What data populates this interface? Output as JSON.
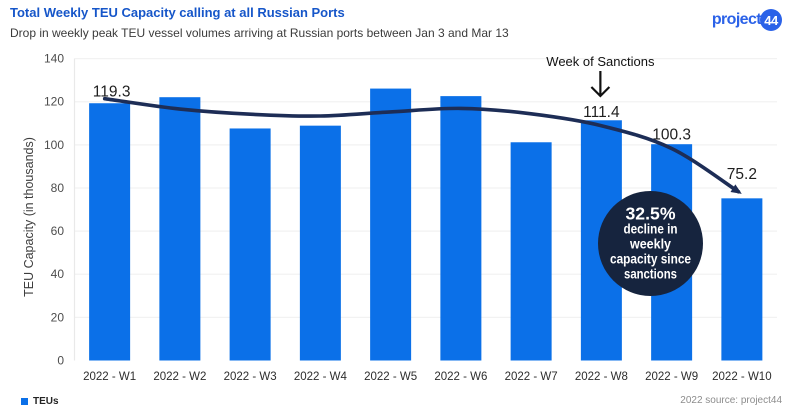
{
  "header": {
    "title": "Total Weekly TEU Capacity calling at all Russian Ports",
    "subtitle": "Drop in weekly peak TEU vessel volumes arriving at Russian ports between Jan 3 and Mar 13"
  },
  "logo": {
    "text": "project",
    "badge": "44"
  },
  "legend": {
    "label": "TEUs"
  },
  "footer": {
    "source": "2022 source: project44"
  },
  "colors": {
    "bar": "#0b70e8",
    "trend_line": "#1d2d56",
    "callout_fill": "#16243e",
    "grid": "#f2f2f2",
    "axis_line": "#e9e9e9",
    "title_blue": "#1656c9",
    "logo_blue": "#2b62e8",
    "value_label": "#1f1f1f",
    "axis_label": "#4d4d4d",
    "x_label": "#2d2d2d",
    "annotation_text": "#111111"
  },
  "chart_data": {
    "type": "bar",
    "title": "Total Weekly TEU Capacity calling at all Russian Ports",
    "xlabel": "",
    "ylabel": "TEU Capacity (in thousands)",
    "ylim": [
      0,
      140
    ],
    "yticks": [
      0,
      20,
      40,
      60,
      80,
      100,
      120,
      140
    ],
    "grid": true,
    "legend_position": "bottom-left",
    "categories": [
      "2022 - W1",
      "2022 - W2",
      "2022 - W3",
      "2022 - W4",
      "2022 - W5",
      "2022 - W6",
      "2022 - W7",
      "2022 - W8",
      "2022 - W9",
      "2022 - W10"
    ],
    "series": [
      {
        "name": "TEUs",
        "values": [
          119.3,
          122.1,
          107.6,
          108.9,
          126.1,
          122.6,
          101.2,
          111.4,
          100.3,
          75.2
        ]
      }
    ],
    "value_labels": [
      {
        "week": 1,
        "text": "119.3",
        "dy": -11
      },
      {
        "week": 8,
        "text": "111.4",
        "dy": -8
      },
      {
        "week": 9,
        "text": "100.3",
        "dy": -9
      },
      {
        "week": 10,
        "text": "75.2",
        "dy": -24
      }
    ],
    "trend": {
      "name": "trend",
      "points": [
        [
          0.93,
          121.4
        ],
        [
          2,
          116.6
        ],
        [
          3,
          114.2
        ],
        [
          4,
          113.4
        ],
        [
          5,
          115.3
        ],
        [
          6,
          116.9
        ],
        [
          7,
          114.4
        ],
        [
          8,
          108.9
        ],
        [
          9,
          98.3
        ],
        [
          9.95,
          78.3
        ]
      ]
    },
    "annotations": {
      "sanctions": {
        "text": "Week of Sanctions",
        "week": 8
      },
      "callout": {
        "lines": [
          "32.5%",
          "decline in",
          "weekly",
          "capacity since",
          "sanctions"
        ],
        "center": [
          650.5,
          243.5
        ],
        "radius": 52.5
      }
    }
  }
}
